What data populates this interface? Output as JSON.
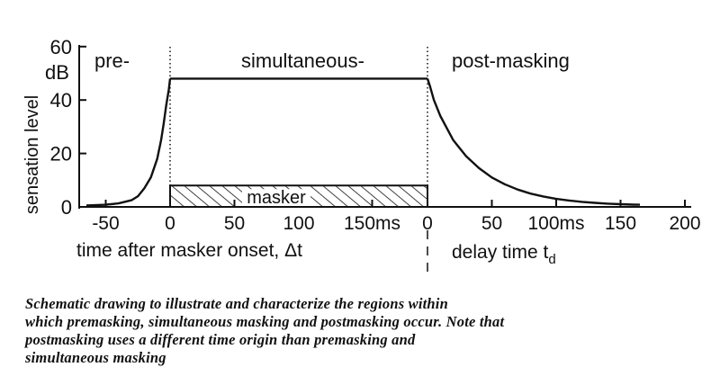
{
  "chart_data": {
    "type": "line",
    "title": "",
    "y_axis": {
      "label": "sensation level",
      "unit": "dB",
      "ylim": [
        0,
        60
      ],
      "ticks": [
        "0",
        "20",
        "40",
        "60"
      ]
    },
    "x_axis_left": {
      "label": "time after masker onset, Δt",
      "ticks": [
        "-50",
        "0",
        "50",
        "100",
        "150ms"
      ],
      "xlim": [
        -70,
        200
      ]
    },
    "x_axis_right": {
      "label": "delay time t",
      "label_subscript": "d",
      "ticks": [
        "0",
        "50",
        "100ms",
        "150",
        "200"
      ]
    },
    "regions": [
      "pre-",
      "simultaneous-",
      "post-masking"
    ],
    "masker": {
      "label": "masker",
      "start_ms": 0,
      "end_ms": 200,
      "level_db": 8
    },
    "series": [
      {
        "name": "",
        "segment": "pre-masking",
        "points": [
          [
            -65,
            0.5
          ],
          [
            -50,
            0.8
          ],
          [
            -40,
            1.3
          ],
          [
            -30,
            2.5
          ],
          [
            -25,
            4
          ],
          [
            -20,
            7
          ],
          [
            -15,
            11
          ],
          [
            -10,
            18
          ],
          [
            -7,
            25
          ],
          [
            -5,
            31
          ],
          [
            -3,
            38
          ],
          [
            -1,
            44
          ],
          [
            0,
            48
          ]
        ]
      },
      {
        "name": "",
        "segment": "simultaneous",
        "points": [
          [
            0,
            48
          ],
          [
            200,
            48
          ]
        ]
      },
      {
        "name": "",
        "segment": "post-masking",
        "points": [
          [
            0,
            48
          ],
          [
            2,
            45
          ],
          [
            5,
            40
          ],
          [
            10,
            34
          ],
          [
            20,
            25
          ],
          [
            30,
            19
          ],
          [
            40,
            14.5
          ],
          [
            50,
            11
          ],
          [
            60,
            8.5
          ],
          [
            70,
            6.5
          ],
          [
            80,
            5
          ],
          [
            90,
            3.9
          ],
          [
            100,
            3
          ],
          [
            110,
            2.4
          ],
          [
            120,
            1.9
          ],
          [
            130,
            1.5
          ],
          [
            140,
            1.2
          ],
          [
            150,
            1.0
          ],
          [
            160,
            0.85
          ],
          [
            165,
            0.8
          ]
        ]
      }
    ]
  },
  "caption": {
    "lines": [
      "Schematic drawing to illustrate and characterize the regions within",
      "which premasking, simultaneous masking and postmasking occur. Note that",
      "postmasking uses a different time origin than premasking and",
      "simultaneous masking"
    ]
  }
}
